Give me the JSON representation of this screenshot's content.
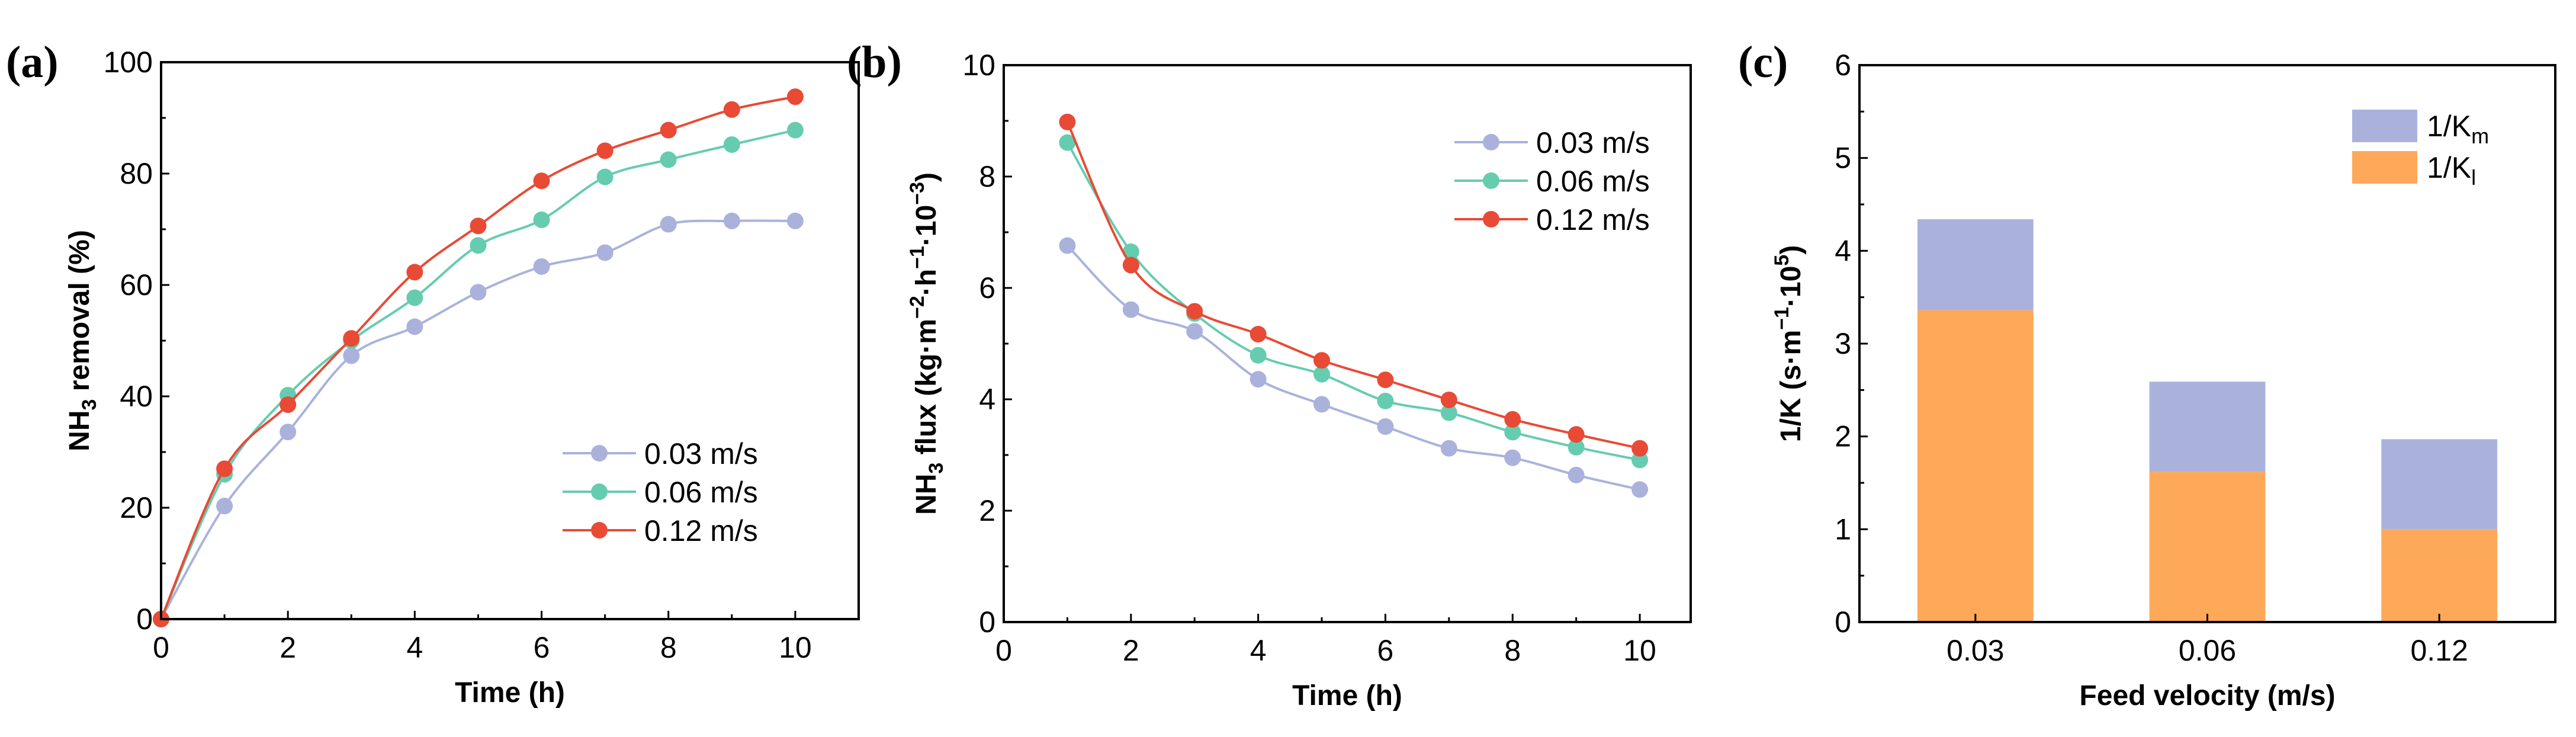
{
  "colors": {
    "s003": "#aab2dc",
    "s006": "#66ccb0",
    "s012": "#e84a36",
    "km": "#aab2dc",
    "kl": "#fea85a"
  },
  "chart_data": [
    {
      "panel_label": "(a)",
      "type": "line",
      "xlabel": "Time (h)",
      "ylabel": {
        "pre": "NH",
        "sub": "3",
        "post": " removal  (%)"
      },
      "xlim": [
        0,
        11
      ],
      "ylim": [
        0,
        100
      ],
      "xticks": [
        "0",
        "2",
        "4",
        "6",
        "8",
        "10"
      ],
      "yticks": [
        "0",
        "20",
        "40",
        "60",
        "80",
        "100"
      ],
      "legend_position": "bottom-right",
      "x": [
        0,
        1,
        2,
        3,
        4,
        5,
        6,
        7,
        8,
        9,
        10
      ],
      "series": [
        {
          "name": "0.03 m/s",
          "color": "#aab2dc",
          "values": [
            0,
            20.3,
            33.6,
            47.3,
            52.5,
            58.7,
            63.3,
            65.8,
            70.9,
            71.5,
            71.5
          ]
        },
        {
          "name": "0.06 m/s",
          "color": "#66ccb0",
          "values": [
            0,
            26.0,
            40.2,
            50.0,
            57.7,
            67.1,
            71.7,
            79.4,
            82.5,
            85.2,
            87.8
          ]
        },
        {
          "name": "0.12 m/s",
          "color": "#e84a36",
          "values": [
            0,
            27.0,
            38.5,
            50.4,
            62.3,
            70.6,
            78.7,
            84.1,
            87.8,
            91.5,
            93.8
          ]
        }
      ]
    },
    {
      "panel_label": "(b)",
      "type": "line",
      "xlabel": "Time (h)",
      "ylabel": {
        "pre": "NH",
        "sub": "3",
        "post": " flux (kg·m",
        "sup1": "−2",
        "mid1": "·h",
        "sup2": "−1",
        "mid2": "·10",
        "sup3": "−3",
        "end": ")"
      },
      "xlim": [
        0,
        10.8
      ],
      "ylim": [
        0,
        10
      ],
      "xticks": [
        "0",
        "2",
        "4",
        "6",
        "8",
        "10"
      ],
      "yticks": [
        "0",
        "2",
        "4",
        "6",
        "8",
        "10"
      ],
      "legend_position": "top-right",
      "x": [
        1,
        2,
        3,
        4,
        5,
        6,
        7,
        8,
        9,
        10
      ],
      "series": [
        {
          "name": "0.03 m/s",
          "color": "#aab2dc",
          "values": [
            6.76,
            5.61,
            5.22,
            4.36,
            3.91,
            3.51,
            3.12,
            2.95,
            2.64,
            2.38
          ]
        },
        {
          "name": "0.06 m/s",
          "color": "#66ccb0",
          "values": [
            8.61,
            6.65,
            5.54,
            4.79,
            4.45,
            3.97,
            3.76,
            3.41,
            3.14,
            2.91
          ]
        },
        {
          "name": "0.12 m/s",
          "color": "#e84a36",
          "values": [
            8.98,
            6.41,
            5.58,
            5.17,
            4.7,
            4.35,
            3.99,
            3.64,
            3.37,
            3.12
          ]
        }
      ]
    },
    {
      "panel_label": "(c)",
      "type": "bar",
      "stacked": true,
      "xlabel": "Feed velocity (m/s)",
      "ylabel": {
        "pre": "1/K (s·m",
        "sup1": "−1",
        "mid1": "·10",
        "sup2": "5",
        "end": ")"
      },
      "ylim": [
        0,
        6
      ],
      "yticks": [
        "0",
        "1",
        "2",
        "3",
        "4",
        "5",
        "6"
      ],
      "categories": [
        "0.03",
        "0.06",
        "0.12"
      ],
      "legend_position": "top-right",
      "series": [
        {
          "name": "1/K",
          "sub": "l",
          "color": "#fea85a",
          "values": [
            3.36,
            1.62,
            1.0
          ]
        },
        {
          "name": "1/K",
          "sub": "m",
          "color": "#aab2dc",
          "values": [
            0.98,
            0.97,
            0.97
          ]
        }
      ]
    }
  ]
}
